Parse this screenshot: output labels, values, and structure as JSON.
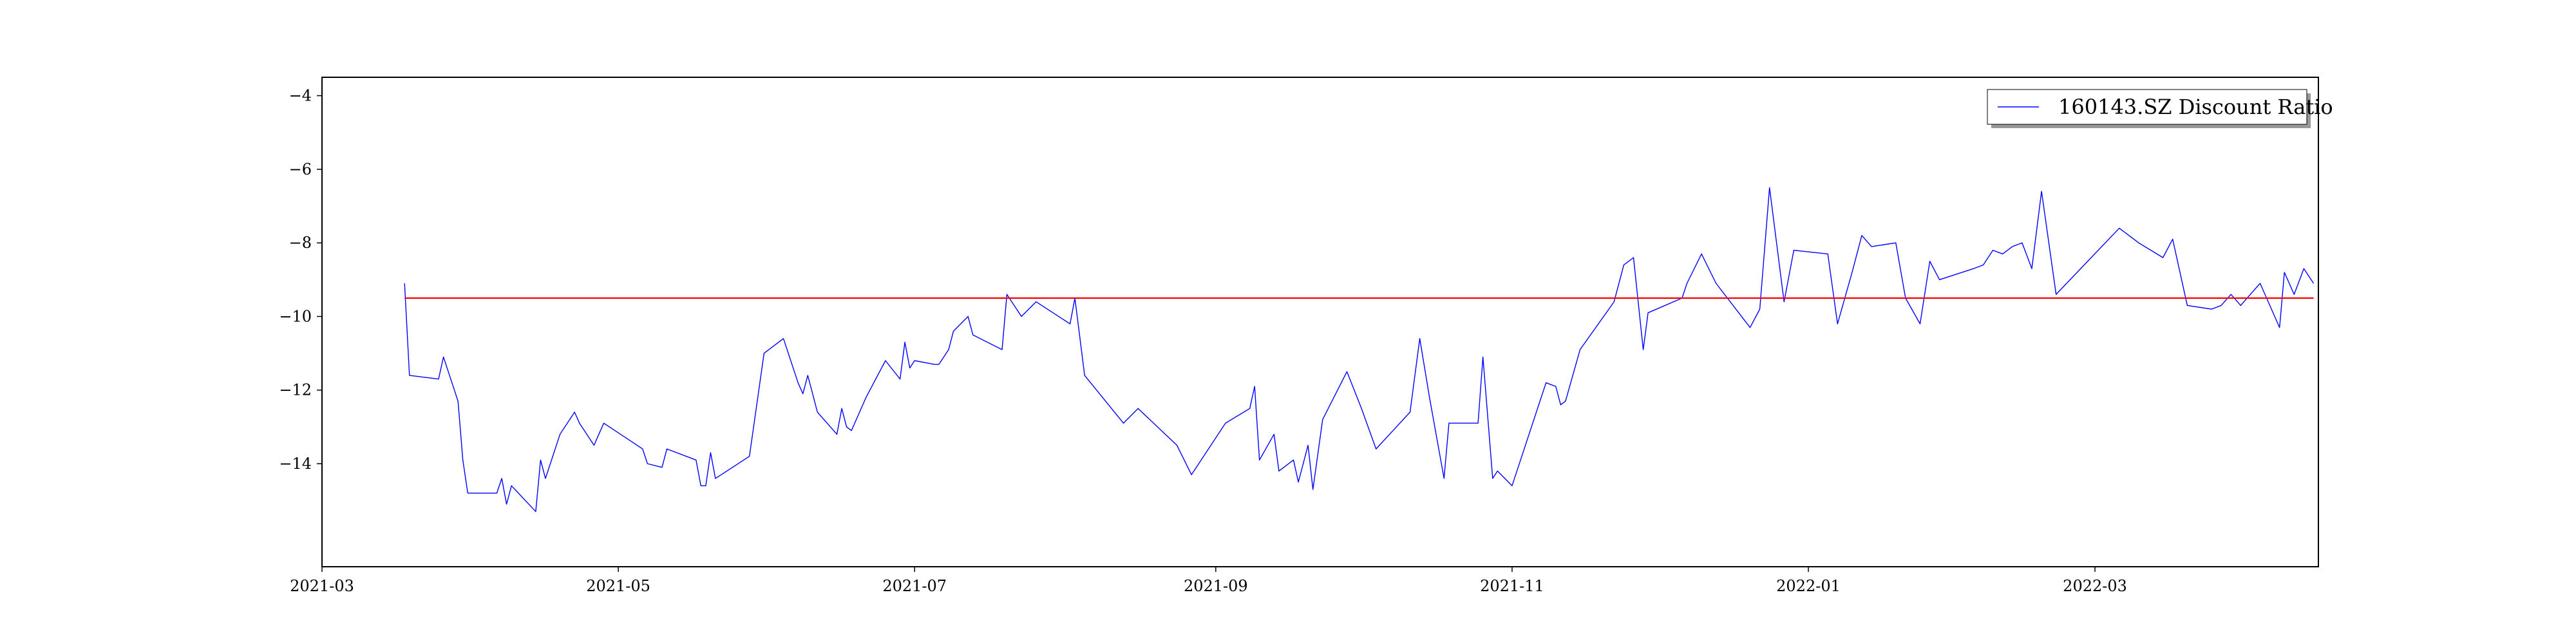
{
  "chart_data": {
    "type": "line",
    "title": "",
    "xlabel": "",
    "ylabel": "",
    "x_axis_type": "date",
    "xlim": [
      "2021-03-01",
      "2022-04-16"
    ],
    "ylim": [
      -16.8,
      -3.5
    ],
    "x_ticks": [
      "2021-03",
      "2021-05",
      "2021-07",
      "2021-09",
      "2021-11",
      "2022-01",
      "2022-03"
    ],
    "y_ticks": [
      -4,
      -6,
      -8,
      -10,
      -12,
      -14
    ],
    "grid": false,
    "legend": {
      "position": "top-right",
      "entries": [
        "160143.SZ Discount Ratio"
      ]
    },
    "series": [
      {
        "name": "160143.SZ Discount Ratio",
        "color": "#0000ff",
        "points": [
          [
            "2021-03-18",
            -9.1
          ],
          [
            "2021-03-19",
            -11.6
          ],
          [
            "2021-03-25",
            -11.7
          ],
          [
            "2021-03-26",
            -11.1
          ],
          [
            "2021-03-29",
            -12.3
          ],
          [
            "2021-03-30",
            -13.9
          ],
          [
            "2021-03-31",
            -14.8
          ],
          [
            "2021-04-06",
            -14.8
          ],
          [
            "2021-04-07",
            -14.4
          ],
          [
            "2021-04-08",
            -15.1
          ],
          [
            "2021-04-09",
            -14.6
          ],
          [
            "2021-04-14",
            -15.3
          ],
          [
            "2021-04-15",
            -13.9
          ],
          [
            "2021-04-16",
            -14.4
          ],
          [
            "2021-04-19",
            -13.2
          ],
          [
            "2021-04-22",
            -12.6
          ],
          [
            "2021-04-23",
            -12.9
          ],
          [
            "2021-04-26",
            -13.5
          ],
          [
            "2021-04-27",
            -13.2
          ],
          [
            "2021-04-28",
            -12.9
          ],
          [
            "2021-05-06",
            -13.6
          ],
          [
            "2021-05-07",
            -14.0
          ],
          [
            "2021-05-10",
            -14.1
          ],
          [
            "2021-05-11",
            -13.6
          ],
          [
            "2021-05-17",
            -13.9
          ],
          [
            "2021-05-18",
            -14.6
          ],
          [
            "2021-05-19",
            -14.6
          ],
          [
            "2021-05-20",
            -13.7
          ],
          [
            "2021-05-21",
            -14.4
          ],
          [
            "2021-05-28",
            -13.8
          ],
          [
            "2021-05-31",
            -11.0
          ],
          [
            "2021-06-04",
            -10.6
          ],
          [
            "2021-06-07",
            -11.8
          ],
          [
            "2021-06-08",
            -12.1
          ],
          [
            "2021-06-09",
            -11.6
          ],
          [
            "2021-06-11",
            -12.6
          ],
          [
            "2021-06-15",
            -13.2
          ],
          [
            "2021-06-16",
            -12.5
          ],
          [
            "2021-06-17",
            -13.0
          ],
          [
            "2021-06-18",
            -13.1
          ],
          [
            "2021-06-21",
            -12.2
          ],
          [
            "2021-06-25",
            -11.2
          ],
          [
            "2021-06-28",
            -11.7
          ],
          [
            "2021-06-29",
            -10.7
          ],
          [
            "2021-06-30",
            -11.4
          ],
          [
            "2021-07-01",
            -11.2
          ],
          [
            "2021-07-05",
            -11.3
          ],
          [
            "2021-07-06",
            -11.3
          ],
          [
            "2021-07-08",
            -10.9
          ],
          [
            "2021-07-09",
            -10.4
          ],
          [
            "2021-07-12",
            -10.0
          ],
          [
            "2021-07-13",
            -10.5
          ],
          [
            "2021-07-19",
            -10.9
          ],
          [
            "2021-07-20",
            -9.4
          ],
          [
            "2021-07-23",
            -10.0
          ],
          [
            "2021-07-26",
            -9.6
          ],
          [
            "2021-08-02",
            -10.2
          ],
          [
            "2021-08-03",
            -9.5
          ],
          [
            "2021-08-05",
            -11.6
          ],
          [
            "2021-08-13",
            -12.9
          ],
          [
            "2021-08-16",
            -12.5
          ],
          [
            "2021-08-24",
            -13.5
          ],
          [
            "2021-08-27",
            -14.3
          ],
          [
            "2021-09-03",
            -12.9
          ],
          [
            "2021-09-08",
            -12.5
          ],
          [
            "2021-09-09",
            -11.9
          ],
          [
            "2021-09-10",
            -13.9
          ],
          [
            "2021-09-13",
            -13.2
          ],
          [
            "2021-09-14",
            -14.2
          ],
          [
            "2021-09-17",
            -13.9
          ],
          [
            "2021-09-18",
            -14.5
          ],
          [
            "2021-09-20",
            -13.5
          ],
          [
            "2021-09-21",
            -14.7
          ],
          [
            "2021-09-23",
            -12.8
          ],
          [
            "2021-09-28",
            -11.5
          ],
          [
            "2021-10-01",
            -12.5
          ],
          [
            "2021-10-04",
            -13.6
          ],
          [
            "2021-10-11",
            -12.6
          ],
          [
            "2021-10-13",
            -10.6
          ],
          [
            "2021-10-15",
            -12.2
          ],
          [
            "2021-10-18",
            -14.4
          ],
          [
            "2021-10-19",
            -12.9
          ],
          [
            "2021-10-25",
            -12.9
          ],
          [
            "2021-10-26",
            -11.1
          ],
          [
            "2021-10-28",
            -14.4
          ],
          [
            "2021-10-29",
            -14.2
          ],
          [
            "2021-11-01",
            -14.6
          ],
          [
            "2021-11-08",
            -11.8
          ],
          [
            "2021-11-10",
            -11.9
          ],
          [
            "2021-11-11",
            -12.4
          ],
          [
            "2021-11-12",
            -12.3
          ],
          [
            "2021-11-15",
            -10.9
          ],
          [
            "2021-11-22",
            -9.6
          ],
          [
            "2021-11-24",
            -8.6
          ],
          [
            "2021-11-26",
            -8.4
          ],
          [
            "2021-11-28",
            -10.9
          ],
          [
            "2021-11-29",
            -9.9
          ],
          [
            "2021-12-06",
            -9.5
          ],
          [
            "2021-12-07",
            -9.1
          ],
          [
            "2021-12-10",
            -8.3
          ],
          [
            "2021-12-13",
            -9.1
          ],
          [
            "2021-12-20",
            -10.3
          ],
          [
            "2021-12-22",
            -9.8
          ],
          [
            "2021-12-24",
            -6.5
          ],
          [
            "2021-12-27",
            -9.6
          ],
          [
            "2021-12-29",
            -8.2
          ],
          [
            "2022-01-05",
            -8.3
          ],
          [
            "2022-01-07",
            -10.2
          ],
          [
            "2022-01-10",
            -8.8
          ],
          [
            "2022-01-12",
            -7.8
          ],
          [
            "2022-01-14",
            -8.1
          ],
          [
            "2022-01-19",
            -8.0
          ],
          [
            "2022-01-21",
            -9.5
          ],
          [
            "2022-01-24",
            -10.2
          ],
          [
            "2022-01-26",
            -8.5
          ],
          [
            "2022-01-28",
            -9.0
          ],
          [
            "2022-02-04",
            -8.7
          ],
          [
            "2022-02-06",
            -8.6
          ],
          [
            "2022-02-08",
            -8.2
          ],
          [
            "2022-02-10",
            -8.3
          ],
          [
            "2022-02-12",
            -8.1
          ],
          [
            "2022-02-14",
            -8.0
          ],
          [
            "2022-02-16",
            -8.7
          ],
          [
            "2022-02-18",
            -6.6
          ],
          [
            "2022-02-21",
            -9.4
          ],
          [
            "2022-03-06",
            -7.6
          ],
          [
            "2022-03-10",
            -8.0
          ],
          [
            "2022-03-15",
            -8.4
          ],
          [
            "2022-03-17",
            -7.9
          ],
          [
            "2022-03-20",
            -9.7
          ],
          [
            "2022-03-25",
            -9.8
          ],
          [
            "2022-03-27",
            -9.7
          ],
          [
            "2022-03-29",
            -9.4
          ],
          [
            "2022-03-31",
            -9.7
          ],
          [
            "2022-04-02",
            -9.4
          ],
          [
            "2022-04-04",
            -9.1
          ],
          [
            "2022-04-08",
            -10.3
          ],
          [
            "2022-04-09",
            -8.8
          ],
          [
            "2022-04-11",
            -9.4
          ],
          [
            "2022-04-13",
            -8.7
          ],
          [
            "2022-04-15",
            -9.1
          ]
        ]
      },
      {
        "name": "",
        "color": "#ff0000",
        "points": [
          [
            "2021-03-18",
            -9.5
          ],
          [
            "2022-04-15",
            -9.5
          ]
        ]
      }
    ]
  }
}
